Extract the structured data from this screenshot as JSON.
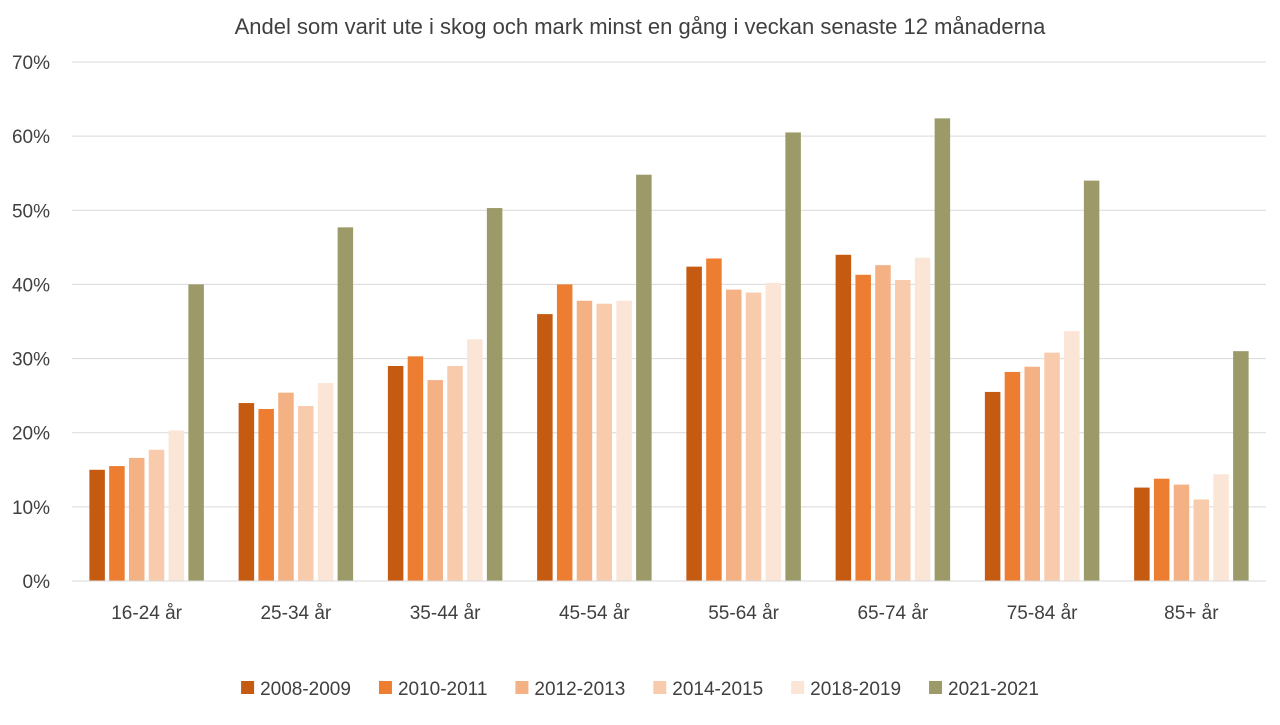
{
  "chart_data": {
    "type": "bar",
    "title": "Andel som varit ute i skog och mark minst en gång i veckan senaste 12 månaderna",
    "xlabel": "",
    "ylabel": "",
    "ylim": [
      0,
      0.7
    ],
    "y_ticks": [
      {
        "value": 0,
        "label": "0%"
      },
      {
        "value": 0.1,
        "label": "10%"
      },
      {
        "value": 0.2,
        "label": "20%"
      },
      {
        "value": 0.3,
        "label": "30%"
      },
      {
        "value": 0.4,
        "label": "40%"
      },
      {
        "value": 0.5,
        "label": "50%"
      },
      {
        "value": 0.6,
        "label": "60%"
      },
      {
        "value": 0.7,
        "label": "70%"
      }
    ],
    "grid": true,
    "legend_position": "bottom",
    "categories": [
      "16-24 år",
      "25-34 år",
      "35-44 år",
      "45-54 år",
      "55-64 år",
      "65-74 år",
      "75-84 år",
      "85+ år"
    ],
    "series": [
      {
        "name": "2008-2009",
        "color": "#C55A11",
        "values": [
          0.15,
          0.24,
          0.29,
          0.36,
          0.424,
          0.44,
          0.255,
          0.126
        ]
      },
      {
        "name": "2010-2011",
        "color": "#ED7D31",
        "values": [
          0.155,
          0.232,
          0.303,
          0.4,
          0.435,
          0.413,
          0.282,
          0.138
        ]
      },
      {
        "name": "2012-2013",
        "color": "#F4B183",
        "values": [
          0.166,
          0.254,
          0.271,
          0.378,
          0.393,
          0.426,
          0.289,
          0.13
        ]
      },
      {
        "name": "2014-2015",
        "color": "#F8CBAD",
        "values": [
          0.177,
          0.236,
          0.29,
          0.374,
          0.389,
          0.406,
          0.308,
          0.11
        ]
      },
      {
        "name": "2018-2019",
        "color": "#FBE5D6",
        "values": [
          0.203,
          0.267,
          0.326,
          0.378,
          0.402,
          0.436,
          0.337,
          0.144
        ]
      },
      {
        "name": "2021-2021",
        "color": "#9C9A69",
        "values": [
          0.4,
          0.477,
          0.503,
          0.548,
          0.605,
          0.624,
          0.54,
          0.31
        ]
      }
    ]
  }
}
